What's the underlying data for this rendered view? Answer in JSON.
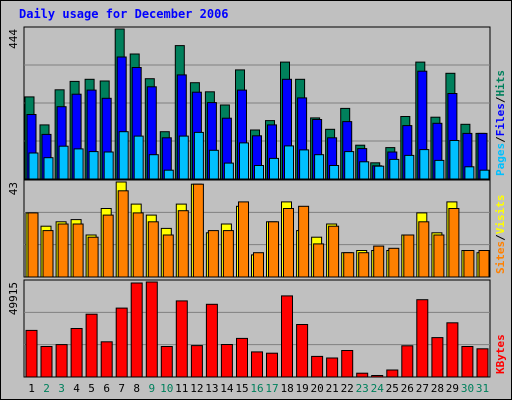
{
  "title": "Daily usage for December 2006",
  "colors": {
    "background": "#c0c0c0",
    "panel": "#c0c0c0",
    "grid": "#808080",
    "hits": "#00805c",
    "files": "#0000ff",
    "pages": "#00c0ff",
    "visits": "#ffff00",
    "sites": "#ff8000",
    "kbytes": "#ff0000",
    "title": "#0000ff",
    "weekend_label": "#00805c"
  },
  "chart_data": [
    {
      "type": "bar",
      "panel": "top",
      "y_max_label": "444",
      "ylim": [
        0,
        444
      ],
      "grid": true,
      "legend": [
        {
          "name": "Pages",
          "color": "#00c0ff"
        },
        {
          "name": "Files",
          "color": "#0000ff"
        },
        {
          "name": "Hits",
          "color": "#00805c"
        }
      ],
      "categories": [
        "1",
        "2",
        "3",
        "4",
        "5",
        "6",
        "7",
        "8",
        "9",
        "10",
        "11",
        "12",
        "13",
        "14",
        "15",
        "16",
        "17",
        "18",
        "19",
        "20",
        "21",
        "22",
        "23",
        "24",
        "25",
        "26",
        "27",
        "28",
        "29",
        "30",
        "31"
      ],
      "series": [
        {
          "name": "Hits",
          "values": [
            243,
            160,
            264,
            289,
            295,
            290,
            444,
            370,
            297,
            140,
            395,
            285,
            258,
            219,
            323,
            145,
            173,
            346,
            295,
            181,
            147,
            209,
            100,
            48,
            93,
            185,
            346,
            183,
            313,
            162,
            135
          ]
        },
        {
          "name": "Files",
          "values": [
            191,
            132,
            214,
            251,
            263,
            239,
            361,
            330,
            273,
            122,
            308,
            257,
            226,
            180,
            263,
            128,
            160,
            295,
            240,
            176,
            122,
            170,
            90,
            39,
            80,
            158,
            319,
            165,
            253,
            135,
            135
          ]
        },
        {
          "name": "Pages",
          "values": [
            77,
            63,
            97,
            89,
            81,
            80,
            140,
            127,
            72,
            26,
            127,
            138,
            85,
            47,
            107,
            40,
            61,
            98,
            86,
            72,
            40,
            81,
            51,
            38,
            58,
            70,
            87,
            55,
            114,
            36,
            26
          ]
        }
      ]
    },
    {
      "type": "bar",
      "panel": "middle",
      "y_max_label": "43",
      "ylim": [
        0,
        43
      ],
      "grid": true,
      "legend": [
        {
          "name": "Sites",
          "color": "#ff8000"
        },
        {
          "name": "Visits",
          "color": "#ffff00"
        }
      ],
      "categories": [
        "1",
        "2",
        "3",
        "4",
        "5",
        "6",
        "7",
        "8",
        "9",
        "10",
        "11",
        "12",
        "13",
        "14",
        "15",
        "16",
        "17",
        "18",
        "19",
        "20",
        "21",
        "22",
        "23",
        "24",
        "25",
        "26",
        "27",
        "28",
        "29",
        "30",
        "31"
      ],
      "series": [
        {
          "name": "Visits",
          "values": [
            29,
            23,
            25,
            26,
            19,
            31,
            43,
            33,
            28,
            22,
            33,
            42,
            20,
            24,
            32,
            10,
            25,
            34,
            21,
            18,
            24,
            11,
            12,
            12,
            12,
            19,
            29,
            20,
            34,
            12,
            11
          ]
        },
        {
          "name": "Sites",
          "values": [
            29,
            21,
            24,
            24,
            18,
            28,
            39,
            29,
            25,
            19,
            30,
            42,
            21,
            21,
            34,
            11,
            25,
            31,
            32,
            15,
            23,
            11,
            11,
            14,
            13,
            19,
            25,
            19,
            31,
            12,
            12
          ]
        }
      ]
    },
    {
      "type": "bar",
      "panel": "bottom",
      "y_max_label": "49915",
      "ylim": [
        0,
        49915
      ],
      "grid": true,
      "legend": [
        {
          "name": "KBytes",
          "color": "#ff0000"
        }
      ],
      "categories": [
        "1",
        "2",
        "3",
        "4",
        "5",
        "6",
        "7",
        "8",
        "9",
        "10",
        "11",
        "12",
        "13",
        "14",
        "15",
        "16",
        "17",
        "18",
        "19",
        "20",
        "21",
        "22",
        "23",
        "24",
        "25",
        "26",
        "27",
        "28",
        "29",
        "30",
        "31"
      ],
      "series": [
        {
          "name": "KBytes",
          "values": [
            24500,
            16000,
            17000,
            25500,
            33000,
            18500,
            36200,
            49400,
            49915,
            16000,
            40000,
            16500,
            38200,
            17100,
            20300,
            13200,
            12500,
            42600,
            27600,
            10800,
            10000,
            13900,
            2000,
            800,
            3700,
            16400,
            40600,
            20700,
            28500,
            16000,
            14800
          ]
        }
      ]
    }
  ],
  "x_labels": {
    "days": [
      "1",
      "2",
      "3",
      "4",
      "5",
      "6",
      "7",
      "8",
      "9",
      "10",
      "11",
      "12",
      "13",
      "14",
      "15",
      "16",
      "17",
      "18",
      "19",
      "20",
      "21",
      "22",
      "23",
      "24",
      "25",
      "26",
      "27",
      "28",
      "29",
      "30",
      "31"
    ],
    "weekend_days": [
      "2",
      "3",
      "9",
      "10",
      "16",
      "17",
      "23",
      "24",
      "30",
      "31"
    ]
  }
}
